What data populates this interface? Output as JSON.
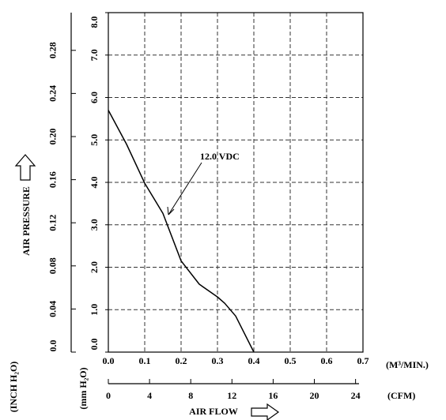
{
  "chart_data": {
    "type": "line",
    "x_label": "AIR FLOW",
    "y_label": "AIR PRESSURE",
    "x_unit": "(M³/MIN.)",
    "x2_unit": "(CFM)",
    "y_unit": "(mm H₂O)",
    "y2_unit": "(INCH H₂O)",
    "x": [
      0,
      0.05,
      0.1,
      0.15,
      0.2,
      0.25,
      0.3,
      0.32,
      0.35,
      0.4
    ],
    "series": [
      {
        "name": "12.0 VDC",
        "color": "#000000",
        "values": [
          5.7,
          4.9,
          3.98,
          3.27,
          2.15,
          1.6,
          1.3,
          1.15,
          0.85,
          0
        ]
      }
    ],
    "xlim": [
      0,
      0.7
    ],
    "xticks": [
      {
        "value": 0,
        "label": "0.0"
      },
      0.1,
      0.2,
      0.3,
      0.4,
      0.5,
      0.6,
      0.7
    ],
    "x2lim": [
      0,
      24.72
    ],
    "x2ticks": [
      0,
      4,
      8,
      12,
      16,
      20,
      24
    ],
    "ylim": [
      0,
      8
    ],
    "yticks": [
      {
        "value": 0,
        "label": "0.0"
      },
      {
        "value": 1,
        "label": "1.0"
      },
      {
        "value": 2,
        "label": "2.0"
      },
      {
        "value": 3,
        "label": "3.0"
      },
      {
        "value": 4,
        "label": "4.0"
      },
      {
        "value": 5,
        "label": "5.0"
      },
      {
        "value": 6,
        "label": "6.0"
      },
      {
        "value": 7,
        "label": "7.0"
      },
      {
        "value": 8,
        "label": "8.0"
      }
    ],
    "y2lim": [
      0,
      0.315
    ],
    "y2ticks": [
      {
        "value": 0,
        "label": "0.0"
      },
      0.04,
      0.08,
      0.12,
      0.16,
      {
        "value": 0.2,
        "label": "0.20"
      },
      0.24,
      0.28
    ],
    "grid": true
  }
}
